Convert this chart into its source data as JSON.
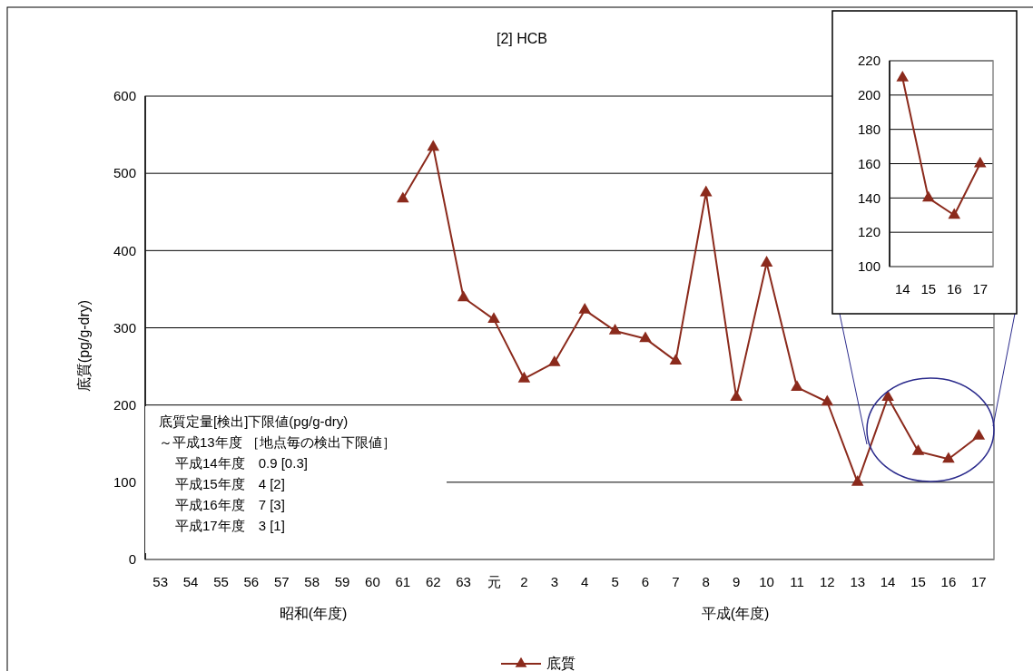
{
  "chart_data": [
    {
      "type": "line",
      "title": "[2] HCB",
      "ylabel": "底質(pg/g-dry)",
      "categories": [
        "53",
        "54",
        "55",
        "56",
        "57",
        "58",
        "59",
        "60",
        "61",
        "62",
        "63",
        "元",
        "2",
        "3",
        "4",
        "5",
        "6",
        "7",
        "8",
        "9",
        "10",
        "11",
        "12",
        "13",
        "14",
        "15",
        "16",
        "17"
      ],
      "series": [
        {
          "name": "底質",
          "color": "#8b2a1c",
          "values": [
            null,
            null,
            null,
            null,
            null,
            null,
            null,
            null,
            467,
            534,
            339,
            311,
            234,
            255,
            323,
            296,
            286,
            257,
            475,
            210,
            384,
            223,
            204,
            100,
            210,
            140,
            130,
            160
          ]
        }
      ],
      "ylim": [
        0,
        600
      ],
      "yticks": [
        0,
        100,
        200,
        300,
        400,
        500,
        600
      ],
      "grid": "y",
      "legend": "bottom",
      "marker": "triangle",
      "line_style": "solid",
      "annotations": [
        "昭和(年度)",
        "平成(年度)",
        "底質定量[検出]下限値(pg/g-dry)",
        "～平成13年度 ［地点毎の検出下限値］",
        "平成14年度　0.9 [0.3]",
        "平成15年度　4 [2]",
        "平成16年度　7 [3]",
        "平成17年度　3 [1]"
      ]
    },
    {
      "type": "line",
      "categories": [
        "14",
        "15",
        "16",
        "17"
      ],
      "series": [
        {
          "color": "#8b2a1c",
          "values": [
            210,
            140,
            130,
            160
          ]
        }
      ],
      "ylim": [
        100,
        220
      ],
      "yticks": [
        100,
        120,
        140,
        160,
        180,
        200,
        220
      ],
      "grid": "y",
      "marker": "triangle",
      "line_style": "solid"
    }
  ]
}
